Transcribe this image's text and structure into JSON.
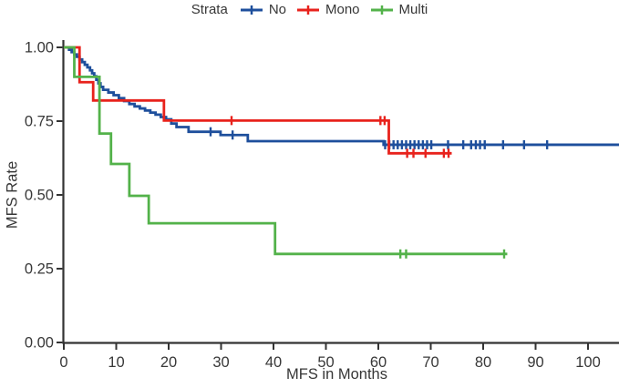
{
  "legend": {
    "title": "Strata",
    "items": [
      {
        "label": "No",
        "color": "#1e4f9c"
      },
      {
        "label": "Mono",
        "color": "#e8221c"
      },
      {
        "label": "Multi",
        "color": "#53b24a"
      }
    ]
  },
  "chart_data": {
    "type": "line",
    "subtype": "kaplan_meier_step",
    "title": "",
    "xlabel": "MFS in Months",
    "ylabel": "MFS Rate",
    "xlim": [
      0,
      106
    ],
    "ylim": [
      0,
      1
    ],
    "grid": false,
    "legend_position": "top",
    "x_ticks": [
      {
        "label": "0",
        "value": 0
      },
      {
        "label": "10",
        "value": 10
      },
      {
        "label": "20",
        "value": 20
      },
      {
        "label": "30",
        "value": 30
      },
      {
        "label": "40",
        "value": 40
      },
      {
        "label": "50",
        "value": 50
      },
      {
        "label": "60",
        "value": 60
      },
      {
        "label": "70",
        "value": 70
      },
      {
        "label": "80",
        "value": 80
      },
      {
        "label": "90",
        "value": 90
      },
      {
        "label": "100",
        "value": 100
      }
    ],
    "y_ticks": [
      {
        "label": "0.00",
        "value": 0
      },
      {
        "label": "0.25",
        "value": 0.25
      },
      {
        "label": "0.50",
        "value": 0.5
      },
      {
        "label": "0.75",
        "value": 0.75
      },
      {
        "label": "1.00",
        "value": 1
      }
    ],
    "series": [
      {
        "name": "No",
        "color": "#1e4f9c",
        "end_month": 106,
        "steps": [
          [
            0,
            1.0
          ],
          [
            1,
            0.992
          ],
          [
            1.5,
            0.984
          ],
          [
            2,
            0.976
          ],
          [
            2.5,
            0.968
          ],
          [
            3,
            0.959
          ],
          [
            3.5,
            0.95
          ],
          [
            4,
            0.941
          ],
          [
            4.5,
            0.932
          ],
          [
            5,
            0.922
          ],
          [
            5.4,
            0.912
          ],
          [
            5.8,
            0.902
          ],
          [
            6.2,
            0.89
          ],
          [
            6.6,
            0.878
          ],
          [
            7,
            0.866
          ],
          [
            7.5,
            0.856
          ],
          [
            8.5,
            0.847
          ],
          [
            9.5,
            0.838
          ],
          [
            10.5,
            0.828
          ],
          [
            11.5,
            0.818
          ],
          [
            12.5,
            0.808
          ],
          [
            13.5,
            0.8
          ],
          [
            14.5,
            0.793
          ],
          [
            15.5,
            0.786
          ],
          [
            16.5,
            0.779
          ],
          [
            17.5,
            0.772
          ],
          [
            18.5,
            0.764
          ],
          [
            19.5,
            0.756
          ],
          [
            20.5,
            0.742
          ],
          [
            21.5,
            0.73
          ],
          [
            23.8,
            0.714
          ],
          [
            29.9,
            0.703
          ],
          [
            35.1,
            0.682
          ],
          [
            61,
            0.67
          ]
        ],
        "censors": [
          [
            28,
            0.714
          ],
          [
            32.2,
            0.703
          ],
          [
            61.3,
            0.67
          ],
          [
            62.1,
            0.67
          ],
          [
            62.9,
            0.67
          ],
          [
            63.7,
            0.67
          ],
          [
            64.5,
            0.67
          ],
          [
            65.3,
            0.67
          ],
          [
            66.1,
            0.67
          ],
          [
            66.9,
            0.67
          ],
          [
            67.7,
            0.67
          ],
          [
            68.5,
            0.67
          ],
          [
            69.3,
            0.67
          ],
          [
            70.1,
            0.67
          ],
          [
            73.3,
            0.67
          ],
          [
            76.2,
            0.67
          ],
          [
            77.7,
            0.67
          ],
          [
            78.6,
            0.67
          ],
          [
            79.4,
            0.67
          ],
          [
            80.3,
            0.67
          ],
          [
            83.8,
            0.67
          ],
          [
            87.8,
            0.67
          ],
          [
            92.2,
            0.67
          ]
        ]
      },
      {
        "name": "Mono",
        "color": "#e8221c",
        "end_month": 74,
        "steps": [
          [
            0,
            1.0
          ],
          [
            3,
            0.882
          ],
          [
            5.6,
            0.82
          ],
          [
            19.1,
            0.752
          ],
          [
            62,
            0.641
          ]
        ],
        "censors": [
          [
            32,
            0.752
          ],
          [
            60.4,
            0.752
          ],
          [
            61.2,
            0.752
          ],
          [
            65.5,
            0.641
          ],
          [
            66.7,
            0.641
          ],
          [
            69,
            0.641
          ],
          [
            72.5,
            0.641
          ],
          [
            73.4,
            0.641
          ]
        ]
      },
      {
        "name": "Multi",
        "color": "#53b24a",
        "end_month": 84.6,
        "steps": [
          [
            0,
            1.0
          ],
          [
            2,
            0.9
          ],
          [
            6.8,
            0.708
          ],
          [
            9,
            0.605
          ],
          [
            12.5,
            0.497
          ],
          [
            16.2,
            0.404
          ],
          [
            40.3,
            0.3
          ]
        ],
        "censors": [
          [
            64.2,
            0.3
          ],
          [
            65.3,
            0.3
          ],
          [
            84,
            0.3
          ]
        ]
      }
    ]
  }
}
